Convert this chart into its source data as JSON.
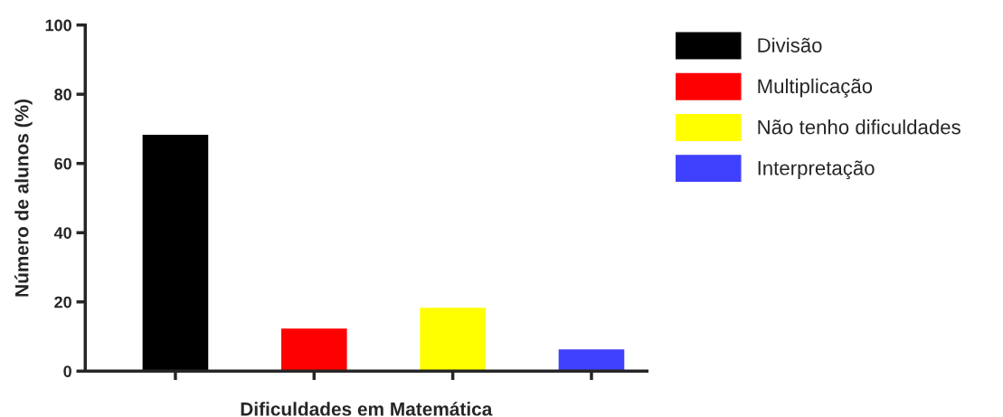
{
  "chart_data": {
    "type": "bar",
    "xlabel": "Dificuldades em Matemática",
    "ylabel": "Número de alunos (%)",
    "categories": [
      null,
      null,
      null,
      null
    ],
    "series": [
      {
        "name": "Divisão",
        "color": "#000000",
        "values": [
          68,
          null,
          null,
          null
        ]
      },
      {
        "name": "Multiplicação",
        "color": "#ff0000",
        "values": [
          null,
          12,
          null,
          null
        ]
      },
      {
        "name": "Não tenho dificuldades",
        "color": "#ffff00",
        "values": [
          null,
          null,
          18,
          null
        ]
      },
      {
        "name": "Interpretação",
        "color": "#4040ff",
        "values": [
          null,
          null,
          null,
          6
        ]
      }
    ],
    "ylim": [
      0,
      100
    ],
    "yticks": [
      0,
      20,
      40,
      60,
      80,
      100
    ],
    "grid": false,
    "legend": "right"
  }
}
